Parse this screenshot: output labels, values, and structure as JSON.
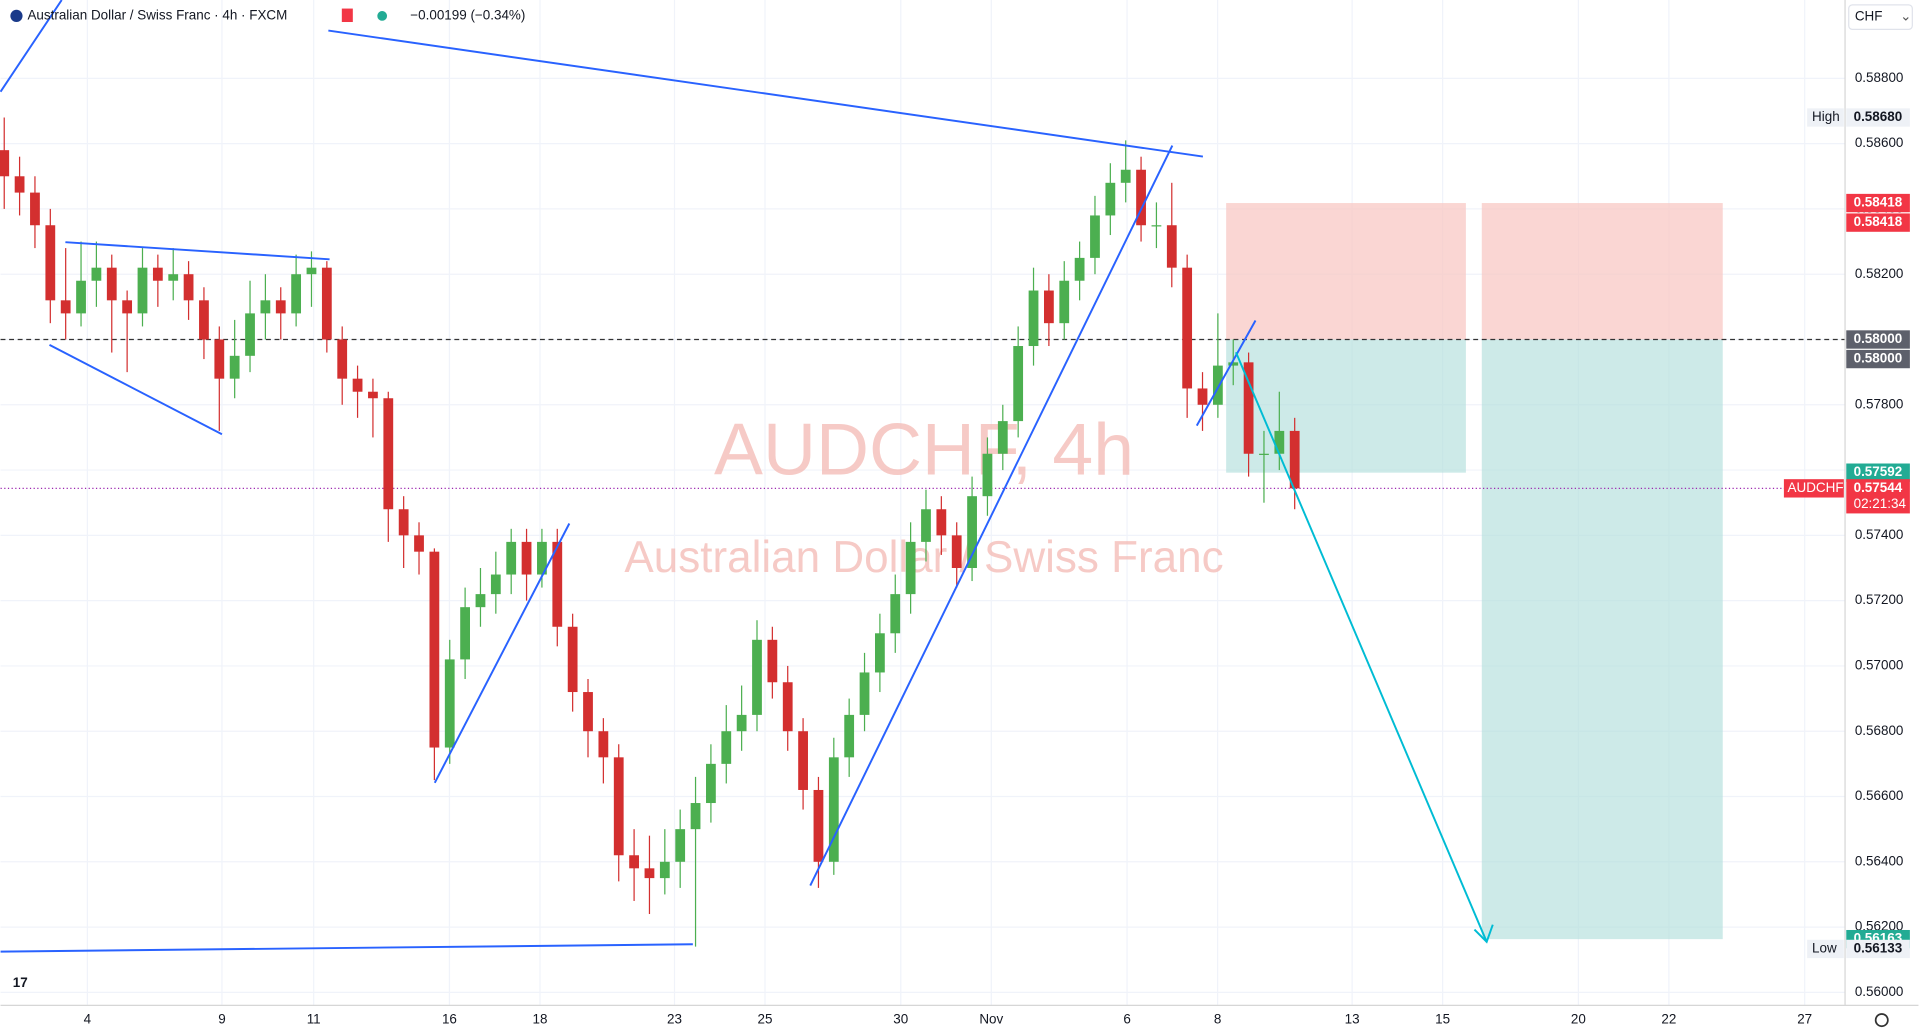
{
  "chart_data": {
    "type": "candlestick",
    "title": "Australian Dollar / Swiss Franc · 4h · FXCM",
    "change": "−0.00199 (−0.34%)",
    "currency": "CHF",
    "watermark": "AUDCHF, 4h",
    "watermark_subtitle": "Australian Dollar / Swiss Franc",
    "up_color": "#4caf50",
    "down_color": "#d32f2f",
    "ylim": [
      0.5596,
      0.5904
    ],
    "yticks": [
      {
        "value": 0.56,
        "label": "0.56000"
      },
      {
        "value": 0.562,
        "label": "0.56200"
      },
      {
        "value": 0.564,
        "label": "0.56400"
      },
      {
        "value": 0.566,
        "label": "0.56600"
      },
      {
        "value": 0.568,
        "label": "0.56800"
      },
      {
        "value": 0.57,
        "label": "0.57000"
      },
      {
        "value": 0.572,
        "label": "0.57200"
      },
      {
        "value": 0.574,
        "label": "0.57400"
      },
      {
        "value": 0.576,
        "label": "0.57600"
      },
      {
        "value": 0.578,
        "label": "0.57800"
      },
      {
        "value": 0.58,
        "label": "0.58000"
      },
      {
        "value": 0.582,
        "label": "0.58200"
      },
      {
        "value": 0.584,
        "label": "0.58400"
      },
      {
        "value": 0.586,
        "label": "0.58600"
      },
      {
        "value": 0.588,
        "label": "0.58800"
      }
    ],
    "xtick_labels": [
      "4",
      "9",
      "11",
      "16",
      "18",
      "23",
      "25",
      "30",
      "Nov",
      "6",
      "8",
      "13",
      "15",
      "20",
      "22",
      "27"
    ],
    "grid": true,
    "candles": [
      [
        0.5858,
        0.5868,
        0.584,
        0.585
      ],
      [
        0.585,
        0.5856,
        0.5838,
        0.5845
      ],
      [
        0.5845,
        0.585,
        0.5828,
        0.5835
      ],
      [
        0.5835,
        0.584,
        0.5805,
        0.5812
      ],
      [
        0.5812,
        0.5828,
        0.58,
        0.5808
      ],
      [
        0.5808,
        0.583,
        0.5804,
        0.5818
      ],
      [
        0.5818,
        0.583,
        0.581,
        0.5822
      ],
      [
        0.5822,
        0.5826,
        0.5796,
        0.5812
      ],
      [
        0.5812,
        0.5815,
        0.579,
        0.5808
      ],
      [
        0.5808,
        0.5828,
        0.5804,
        0.5822
      ],
      [
        0.5822,
        0.5826,
        0.581,
        0.5818
      ],
      [
        0.5818,
        0.5828,
        0.5812,
        0.582
      ],
      [
        0.582,
        0.5824,
        0.5806,
        0.5812
      ],
      [
        0.5812,
        0.5816,
        0.5794,
        0.58
      ],
      [
        0.58,
        0.5804,
        0.5772,
        0.5788
      ],
      [
        0.5788,
        0.5806,
        0.5782,
        0.5795
      ],
      [
        0.5795,
        0.5818,
        0.579,
        0.5808
      ],
      [
        0.5808,
        0.582,
        0.58,
        0.5812
      ],
      [
        0.5812,
        0.5816,
        0.58,
        0.5808
      ],
      [
        0.5808,
        0.5826,
        0.5804,
        0.582
      ],
      [
        0.582,
        0.5827,
        0.581,
        0.5822
      ],
      [
        0.5822,
        0.5824,
        0.5796,
        0.58
      ],
      [
        0.58,
        0.5804,
        0.578,
        0.5788
      ],
      [
        0.5788,
        0.5792,
        0.5776,
        0.5784
      ],
      [
        0.5784,
        0.5788,
        0.577,
        0.5782
      ],
      [
        0.5782,
        0.5784,
        0.5738,
        0.5748
      ],
      [
        0.5748,
        0.5752,
        0.573,
        0.574
      ],
      [
        0.574,
        0.5744,
        0.5728,
        0.5735
      ],
      [
        0.5735,
        0.5736,
        0.5665,
        0.5675
      ],
      [
        0.5675,
        0.5708,
        0.567,
        0.5702
      ],
      [
        0.5702,
        0.5724,
        0.5696,
        0.5718
      ],
      [
        0.5718,
        0.573,
        0.5712,
        0.5722
      ],
      [
        0.5722,
        0.5735,
        0.5716,
        0.5728
      ],
      [
        0.5728,
        0.5742,
        0.5722,
        0.5738
      ],
      [
        0.5738,
        0.5742,
        0.572,
        0.5728
      ],
      [
        0.5728,
        0.5742,
        0.5724,
        0.5738
      ],
      [
        0.5738,
        0.5742,
        0.5706,
        0.5712
      ],
      [
        0.5712,
        0.5716,
        0.5686,
        0.5692
      ],
      [
        0.5692,
        0.5696,
        0.5672,
        0.568
      ],
      [
        0.568,
        0.5684,
        0.5664,
        0.5672
      ],
      [
        0.5672,
        0.5676,
        0.5634,
        0.5642
      ],
      [
        0.5642,
        0.565,
        0.5628,
        0.5638
      ],
      [
        0.5638,
        0.5648,
        0.5624,
        0.5635
      ],
      [
        0.5635,
        0.565,
        0.563,
        0.564
      ],
      [
        0.564,
        0.5656,
        0.5632,
        0.565
      ],
      [
        0.565,
        0.5666,
        0.5614,
        0.5658
      ],
      [
        0.5658,
        0.5676,
        0.5652,
        0.567
      ],
      [
        0.567,
        0.5688,
        0.5664,
        0.568
      ],
      [
        0.568,
        0.5694,
        0.5674,
        0.5685
      ],
      [
        0.5685,
        0.5714,
        0.568,
        0.5708
      ],
      [
        0.5708,
        0.5712,
        0.569,
        0.5695
      ],
      [
        0.5695,
        0.57,
        0.5674,
        0.568
      ],
      [
        0.568,
        0.5684,
        0.5656,
        0.5662
      ],
      [
        0.5662,
        0.5666,
        0.5632,
        0.564
      ],
      [
        0.564,
        0.5678,
        0.5636,
        0.5672
      ],
      [
        0.5672,
        0.569,
        0.5666,
        0.5685
      ],
      [
        0.5685,
        0.5704,
        0.568,
        0.5698
      ],
      [
        0.5698,
        0.5716,
        0.5692,
        0.571
      ],
      [
        0.571,
        0.5728,
        0.5704,
        0.5722
      ],
      [
        0.5722,
        0.5744,
        0.5716,
        0.5738
      ],
      [
        0.5738,
        0.5754,
        0.5732,
        0.5748
      ],
      [
        0.5748,
        0.5752,
        0.5734,
        0.574
      ],
      [
        0.574,
        0.5744,
        0.5724,
        0.573
      ],
      [
        0.573,
        0.5758,
        0.5726,
        0.5752
      ],
      [
        0.5752,
        0.577,
        0.5746,
        0.5765
      ],
      [
        0.5765,
        0.578,
        0.576,
        0.5775
      ],
      [
        0.5775,
        0.5804,
        0.577,
        0.5798
      ],
      [
        0.5798,
        0.5822,
        0.5792,
        0.5815
      ],
      [
        0.5815,
        0.582,
        0.5798,
        0.5805
      ],
      [
        0.5805,
        0.5824,
        0.58,
        0.5818
      ],
      [
        0.5818,
        0.583,
        0.5812,
        0.5825
      ],
      [
        0.5825,
        0.5844,
        0.582,
        0.5838
      ],
      [
        0.5838,
        0.5854,
        0.5832,
        0.5848
      ],
      [
        0.5848,
        0.5861,
        0.5842,
        0.5852
      ],
      [
        0.5852,
        0.5856,
        0.583,
        0.5835
      ],
      [
        0.5835,
        0.5842,
        0.5828,
        0.5835
      ],
      [
        0.5835,
        0.5848,
        0.5816,
        0.5822
      ],
      [
        0.5822,
        0.5826,
        0.5776,
        0.5785
      ],
      [
        0.5785,
        0.579,
        0.5772,
        0.578
      ],
      [
        0.578,
        0.5808,
        0.5776,
        0.5792
      ],
      [
        0.5792,
        0.58,
        0.5786,
        0.5793
      ],
      [
        0.5793,
        0.5796,
        0.5758,
        0.5765
      ],
      [
        0.5765,
        0.5772,
        0.575,
        0.5765
      ],
      [
        0.5765,
        0.5784,
        0.576,
        0.5772
      ],
      [
        0.5772,
        0.5776,
        0.5748,
        0.57544
      ]
    ],
    "price_labels": [
      {
        "tag": "High",
        "value": 0.5868,
        "label": "0.58680"
      },
      {
        "value": 0.58418,
        "label": "0.58418"
      },
      {
        "value": 0.58418,
        "label": "0.58418"
      },
      {
        "value": 0.58,
        "label": "0.58000"
      },
      {
        "value": 0.58,
        "label": "0.58000"
      },
      {
        "value": 0.57592,
        "label": "0.57592"
      },
      {
        "tag": "AUDCHF",
        "value": 0.57544,
        "label": "0.57544",
        "countdown": "02:21:34"
      },
      {
        "value": 0.56163,
        "label": "0.56163"
      },
      {
        "tag": "Low",
        "value": 0.56133,
        "label": "0.56133"
      }
    ]
  }
}
